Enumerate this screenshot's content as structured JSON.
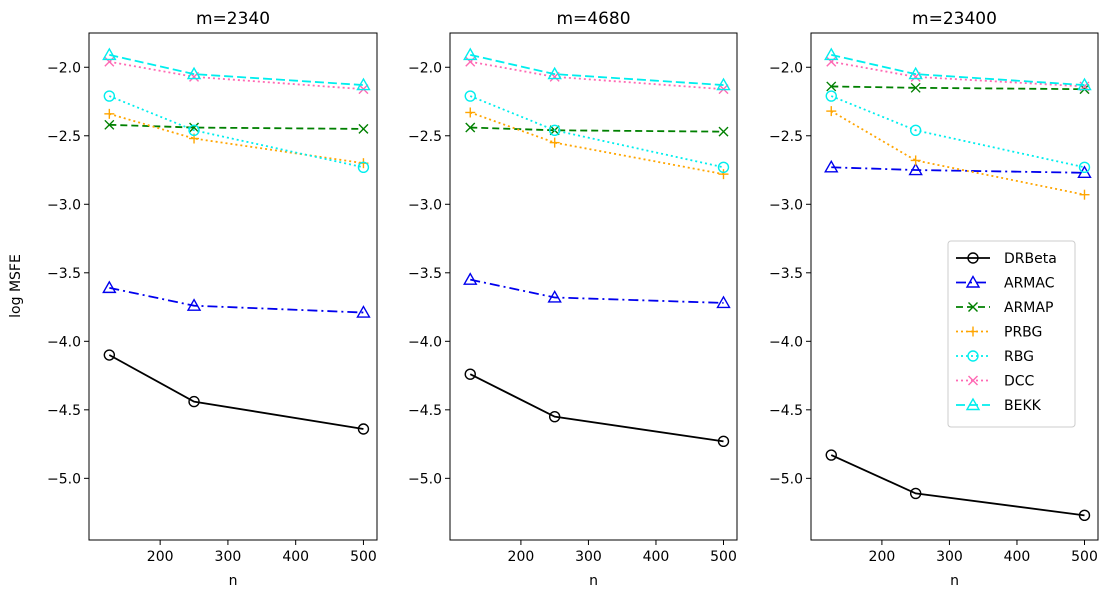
{
  "chart_data": {
    "type": "line",
    "ylabel": "log MSFE",
    "xlabel": "n",
    "x": [
      125,
      250,
      500
    ],
    "xlim": [
      95,
      520
    ],
    "ylim": [
      -5.45,
      -1.75
    ],
    "xticks": [
      200,
      300,
      400,
      500
    ],
    "yticks": [
      -5.0,
      -4.5,
      -4.0,
      -3.5,
      -3.0,
      -2.5,
      -2.0
    ],
    "xtick_labels": [
      "200",
      "300",
      "400",
      "500"
    ],
    "ytick_labels": [
      "−5.0",
      "−4.5",
      "−4.0",
      "−3.5",
      "−3.0",
      "−2.5",
      "−2.0"
    ],
    "legend_position": "center-right of third panel",
    "series_styles": [
      {
        "name": "DRBeta",
        "color": "#000000",
        "dash": "",
        "marker": "circle"
      },
      {
        "name": "ARMAC",
        "color": "#0000ee",
        "dash": "10,4,2,4",
        "marker": "triangle"
      },
      {
        "name": "ARMAP",
        "color": "#008000",
        "dash": "7,4",
        "marker": "x"
      },
      {
        "name": "PRBG",
        "color": "#ffa500",
        "dash": "2,3",
        "marker": "plus"
      },
      {
        "name": "RBG",
        "color": "#00eeee",
        "dash": "2,3",
        "marker": "circle"
      },
      {
        "name": "DCC",
        "color": "#ff69b4",
        "dash": "2,3",
        "marker": "x"
      },
      {
        "name": "BEKK",
        "color": "#00eeee",
        "dash": "9,4",
        "marker": "triangle"
      }
    ],
    "panels": [
      {
        "title": "m=2340",
        "series": [
          {
            "name": "DRBeta",
            "values": [
              -4.1,
              -4.44,
              -4.64
            ]
          },
          {
            "name": "ARMAC",
            "values": [
              -3.61,
              -3.74,
              -3.79
            ]
          },
          {
            "name": "ARMAP",
            "values": [
              -2.42,
              -2.44,
              -2.45
            ]
          },
          {
            "name": "PRBG",
            "values": [
              -2.34,
              -2.52,
              -2.7
            ]
          },
          {
            "name": "RBG",
            "values": [
              -2.21,
              -2.46,
              -2.73
            ]
          },
          {
            "name": "DCC",
            "values": [
              -1.96,
              -2.07,
              -2.16
            ]
          },
          {
            "name": "BEKK",
            "values": [
              -1.91,
              -2.05,
              -2.13
            ]
          }
        ]
      },
      {
        "title": "m=4680",
        "series": [
          {
            "name": "DRBeta",
            "values": [
              -4.24,
              -4.55,
              -4.73
            ]
          },
          {
            "name": "ARMAC",
            "values": [
              -3.55,
              -3.68,
              -3.72
            ]
          },
          {
            "name": "ARMAP",
            "values": [
              -2.44,
              -2.46,
              -2.47
            ]
          },
          {
            "name": "PRBG",
            "values": [
              -2.33,
              -2.55,
              -2.78
            ]
          },
          {
            "name": "RBG",
            "values": [
              -2.21,
              -2.46,
              -2.73
            ]
          },
          {
            "name": "DCC",
            "values": [
              -1.96,
              -2.07,
              -2.16
            ]
          },
          {
            "name": "BEKK",
            "values": [
              -1.91,
              -2.05,
              -2.13
            ]
          }
        ]
      },
      {
        "title": "m=23400",
        "series": [
          {
            "name": "DRBeta",
            "values": [
              -4.83,
              -5.11,
              -5.27
            ]
          },
          {
            "name": "ARMAC",
            "values": [
              -2.73,
              -2.75,
              -2.77
            ]
          },
          {
            "name": "ARMAP",
            "values": [
              -2.14,
              -2.15,
              -2.16
            ]
          },
          {
            "name": "PRBG",
            "values": [
              -2.32,
              -2.68,
              -2.93
            ]
          },
          {
            "name": "RBG",
            "values": [
              -2.21,
              -2.46,
              -2.73
            ]
          },
          {
            "name": "DCC",
            "values": [
              -1.96,
              -2.07,
              -2.14
            ]
          },
          {
            "name": "BEKK",
            "values": [
              -1.91,
              -2.05,
              -2.13
            ]
          }
        ]
      }
    ]
  }
}
